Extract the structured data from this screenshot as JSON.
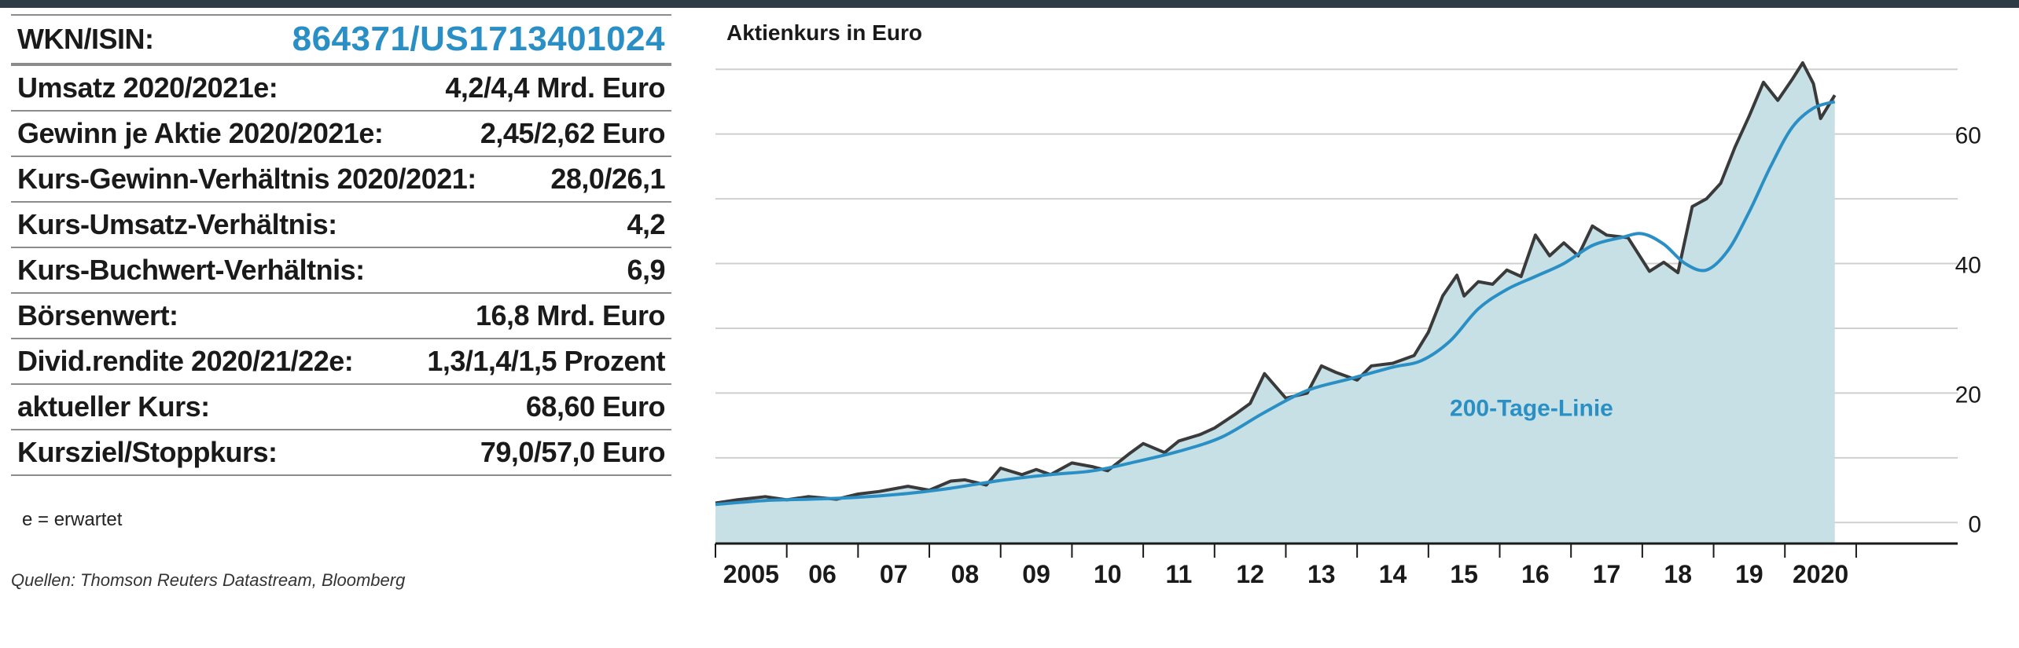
{
  "facts": {
    "wkn_label": "WKN/ISIN:",
    "wkn_value": "864371/US1713401024",
    "rows": [
      {
        "label": "Umsatz 2020/2021e:",
        "value": "4,2/4,4 Mrd. Euro"
      },
      {
        "label": "Gewinn je Aktie 2020/2021e:",
        "value": "2,45/2,62 Euro"
      },
      {
        "label": "Kurs-Gewinn-Verhältnis 2020/2021:",
        "value": "28,0/26,1"
      },
      {
        "label": "Kurs-Umsatz-Verhältnis:",
        "value": "4,2"
      },
      {
        "label": "Kurs-Buchwert-Verhältnis:",
        "value": "6,9"
      },
      {
        "label": "Börsenwert:",
        "value": "16,8 Mrd. Euro"
      },
      {
        "label": "Divid.rendite 2020/21/22e:",
        "value": "1,3/1,4/1,5 Prozent"
      },
      {
        "label": "aktueller Kurs:",
        "value": "68,60 Euro"
      },
      {
        "label": "Kursziel/Stoppkurs:",
        "value": "79,0/57,0 Euro"
      }
    ],
    "footnote": "e = erwartet",
    "sources": "Quellen: Thomson Reuters Datastream, Bloomberg"
  },
  "colors": {
    "accent": "#2a8fc4",
    "area_fill": "#c6e0e5",
    "price_line": "#3a3a3a",
    "ma_line": "#2a8fc4",
    "top_rule": "#2f3b46"
  },
  "chart_data": {
    "type": "area",
    "title": "Aktienkurs in Euro",
    "x_ticks": [
      "2005",
      "06",
      "07",
      "08",
      "09",
      "10",
      "11",
      "12",
      "13",
      "14",
      "15",
      "16",
      "17",
      "18",
      "19",
      "2020"
    ],
    "y_ticks": [
      0,
      20,
      40,
      60
    ],
    "ylim": [
      -3,
      71
    ],
    "xlim": [
      2004.5,
      2020.6
    ],
    "grid": true,
    "series": [
      {
        "name": "",
        "x": [
          2004.5,
          2004.8,
          2005.2,
          2005.5,
          2005.8,
          2006.2,
          2006.5,
          2006.8,
          2007.2,
          2007.5,
          2007.8,
          2008.0,
          2008.3,
          2008.5,
          2008.8,
          2009.0,
          2009.2,
          2009.5,
          2009.8,
          2010.0,
          2010.3,
          2010.5,
          2010.8,
          2011.0,
          2011.3,
          2011.5,
          2011.8,
          2012.0,
          2012.2,
          2012.5,
          2012.8,
          2013.0,
          2013.2,
          2013.5,
          2013.7,
          2014.0,
          2014.3,
          2014.5,
          2014.7,
          2014.9,
          2015.0,
          2015.2,
          2015.4,
          2015.6,
          2015.8,
          2016.0,
          2016.2,
          2016.4,
          2016.6,
          2016.8,
          2017.0,
          2017.3,
          2017.6,
          2017.8,
          2018.0,
          2018.2,
          2018.4,
          2018.6,
          2018.8,
          2019.0,
          2019.2,
          2019.4,
          2019.6,
          2019.75,
          2019.9,
          2020.0,
          2020.2
        ],
        "y": [
          3.0,
          3.5,
          4.0,
          3.5,
          4.0,
          3.6,
          4.4,
          4.8,
          5.6,
          5.0,
          6.4,
          6.6,
          5.8,
          8.4,
          7.4,
          8.2,
          7.4,
          9.2,
          8.6,
          8.0,
          10.6,
          12.2,
          10.8,
          12.6,
          13.6,
          14.6,
          16.8,
          18.4,
          23.0,
          19.2,
          20.0,
          24.2,
          23.2,
          22.0,
          24.2,
          24.6,
          25.8,
          29.4,
          35.0,
          38.2,
          35.0,
          37.2,
          36.8,
          39.0,
          38.0,
          44.4,
          41.2,
          43.2,
          41.2,
          45.8,
          44.4,
          44.0,
          38.8,
          40.2,
          38.6,
          48.8,
          50.0,
          52.4,
          58.0,
          62.8,
          68.0,
          65.2,
          68.4,
          71.0,
          67.8,
          62.4,
          66.0
        ]
      },
      {
        "name": "200-Tage-Linie",
        "x": [
          2004.5,
          2005.2,
          2005.8,
          2006.5,
          2007.2,
          2007.8,
          2008.5,
          2009.2,
          2009.8,
          2010.4,
          2011.0,
          2011.6,
          2012.2,
          2012.8,
          2013.4,
          2014.0,
          2014.4,
          2014.8,
          2015.2,
          2015.6,
          2016.0,
          2016.4,
          2016.8,
          2017.2,
          2017.5,
          2017.8,
          2018.1,
          2018.4,
          2018.7,
          2019.0,
          2019.3,
          2019.6,
          2019.9,
          2020.2
        ],
        "y": [
          2.8,
          3.4,
          3.6,
          3.9,
          4.5,
          5.3,
          6.5,
          7.4,
          8.0,
          9.4,
          11.0,
          13.2,
          17.0,
          20.4,
          22.2,
          24.0,
          25.0,
          28.0,
          33.0,
          36.0,
          38.0,
          40.0,
          42.8,
          44.0,
          44.6,
          43.0,
          40.0,
          39.0,
          42.0,
          48.0,
          55.0,
          61.0,
          64.0,
          65.0
        ]
      }
    ],
    "annotations": [
      {
        "text": "200-Tage-Linie"
      }
    ]
  }
}
